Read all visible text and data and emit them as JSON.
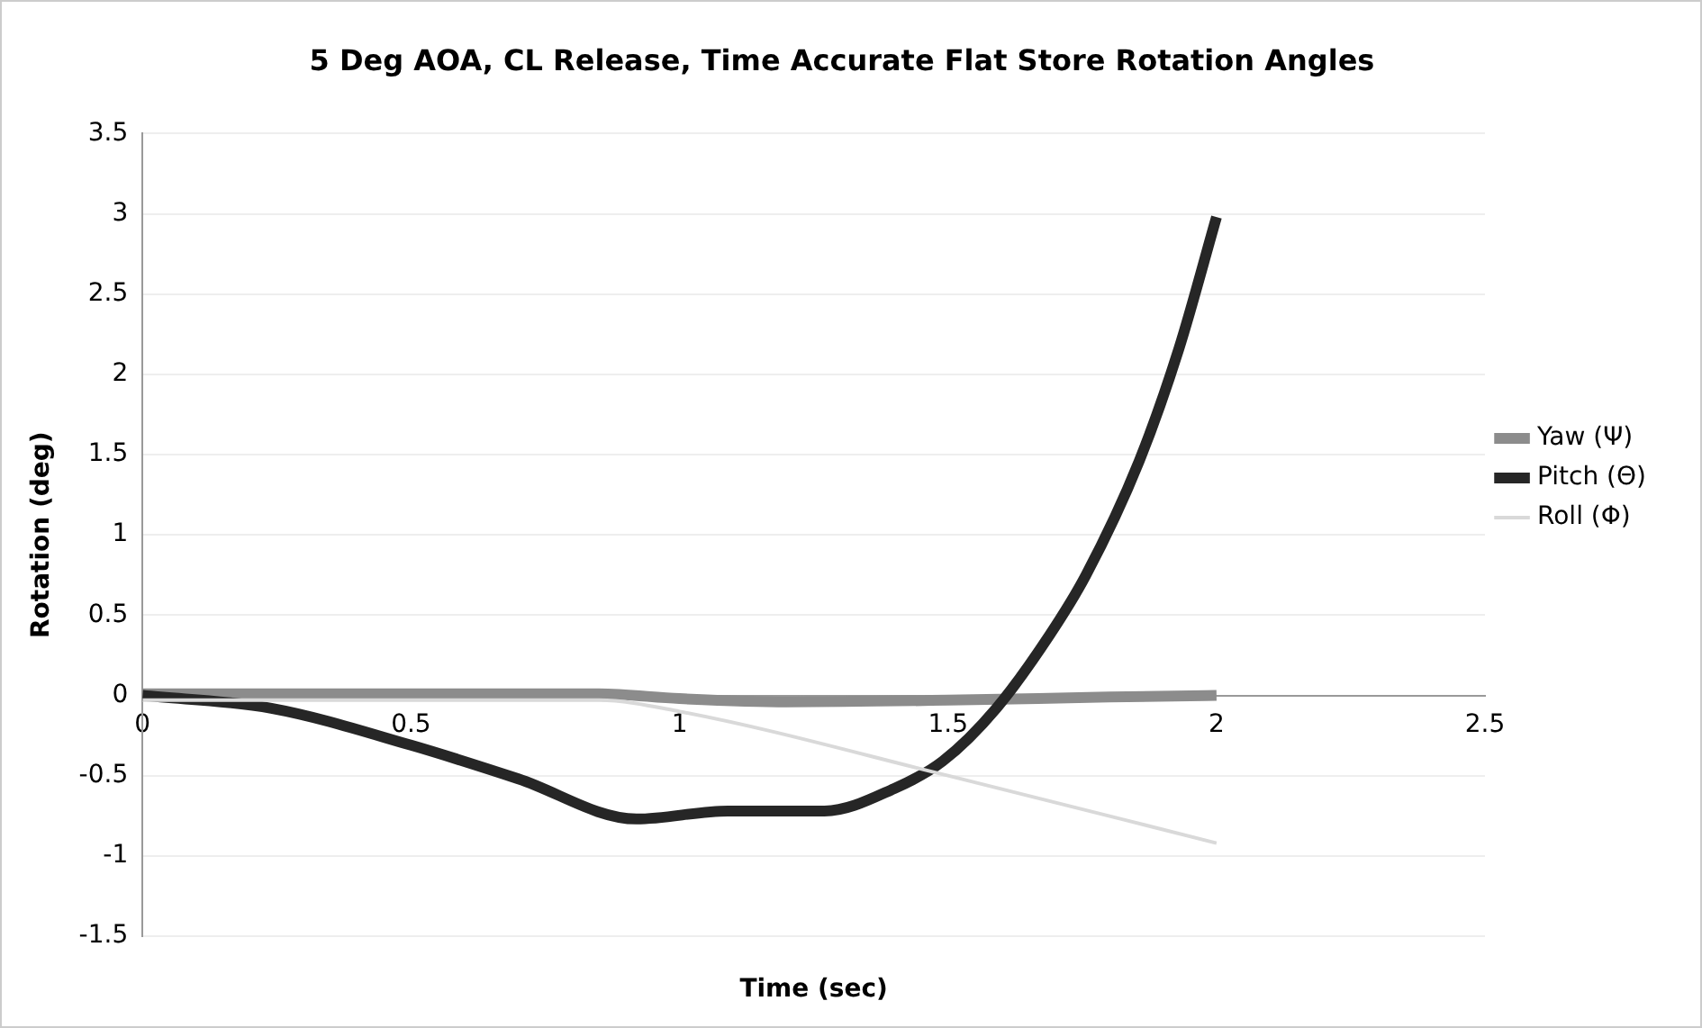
{
  "chart_data": {
    "type": "line",
    "title": "5 Deg AOA, CL Release, Time Accurate Flat Store Rotation Angles",
    "xlabel": "Time (sec)",
    "ylabel": "Rotation (deg)",
    "xlim": [
      0,
      2.5
    ],
    "xticks": [
      0,
      0.5,
      1,
      1.5,
      2,
      2.5
    ],
    "ylim": [
      -1.5,
      3.5
    ],
    "yticks": [
      -1.5,
      -1,
      -0.5,
      0,
      0.5,
      1,
      1.5,
      2,
      2.5,
      3,
      3.5
    ],
    "grid": "y",
    "legend": "right",
    "marker": "none",
    "series": [
      {
        "name": "Yaw (Ψ)",
        "color": "#8c8c8c",
        "x": [
          0,
          0.5,
          0.85,
          1.0,
          1.2,
          1.5,
          1.8,
          2.0
        ],
        "values": [
          0.01,
          0.01,
          0.01,
          -0.02,
          -0.04,
          -0.03,
          -0.01,
          0.0
        ]
      },
      {
        "name": "Pitch (Θ)",
        "color": "#262626",
        "x": [
          0,
          0.24,
          0.5,
          0.7,
          0.92,
          1.09,
          1.27,
          1.4,
          1.49,
          1.59,
          1.69,
          1.757,
          1.856,
          1.93,
          2.0
        ],
        "values": [
          0,
          -0.08,
          -0.31,
          -0.52,
          -0.77,
          -0.72,
          -0.72,
          -0.58,
          -0.41,
          -0.08,
          0.38,
          0.75,
          1.46,
          2.16,
          2.98
        ]
      },
      {
        "name": "Roll (Φ)",
        "color": "#d9d9d9",
        "x": [
          0,
          0.5,
          0.85,
          1.0,
          1.5,
          2.0
        ],
        "values": [
          -0.03,
          -0.03,
          -0.03,
          -0.1,
          -0.5,
          -0.92
        ]
      }
    ]
  }
}
